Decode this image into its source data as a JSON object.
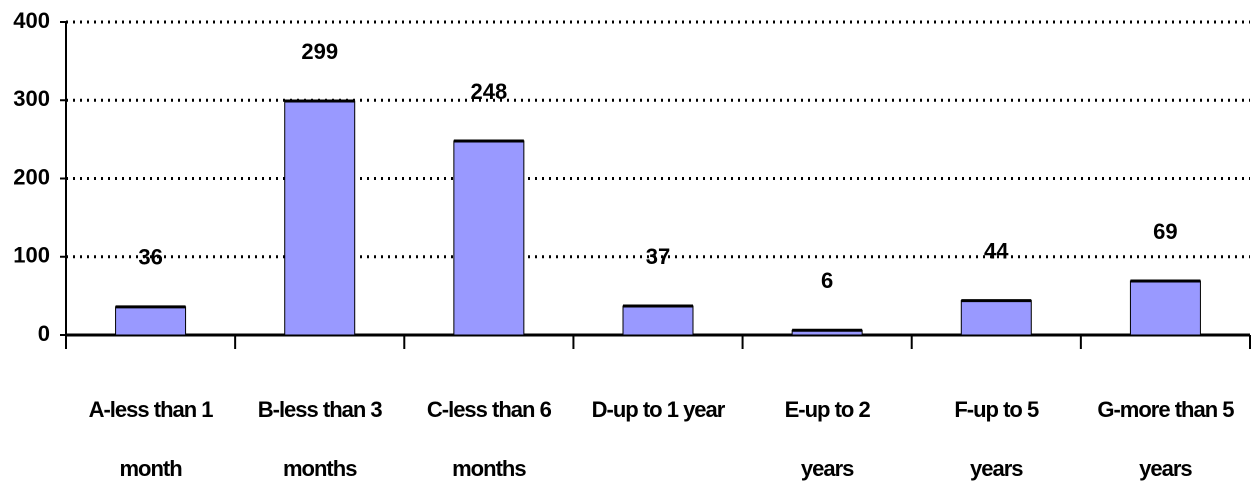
{
  "chart_data": {
    "type": "bar",
    "categories": [
      [
        "A-less than 1",
        "month"
      ],
      [
        "B-less than 3",
        "months"
      ],
      [
        "C-less than 6",
        "months"
      ],
      [
        "D-up to 1 year"
      ],
      [
        "E-up to 2",
        "years"
      ],
      [
        "F-up to 5",
        "years"
      ],
      [
        "G-more than 5",
        "years"
      ]
    ],
    "values": [
      36,
      299,
      248,
      37,
      6,
      44,
      69
    ],
    "color": "#9999ff",
    "ylim": [
      0,
      400
    ],
    "yticks": [
      0,
      100,
      200,
      300,
      400
    ],
    "grid": true
  }
}
